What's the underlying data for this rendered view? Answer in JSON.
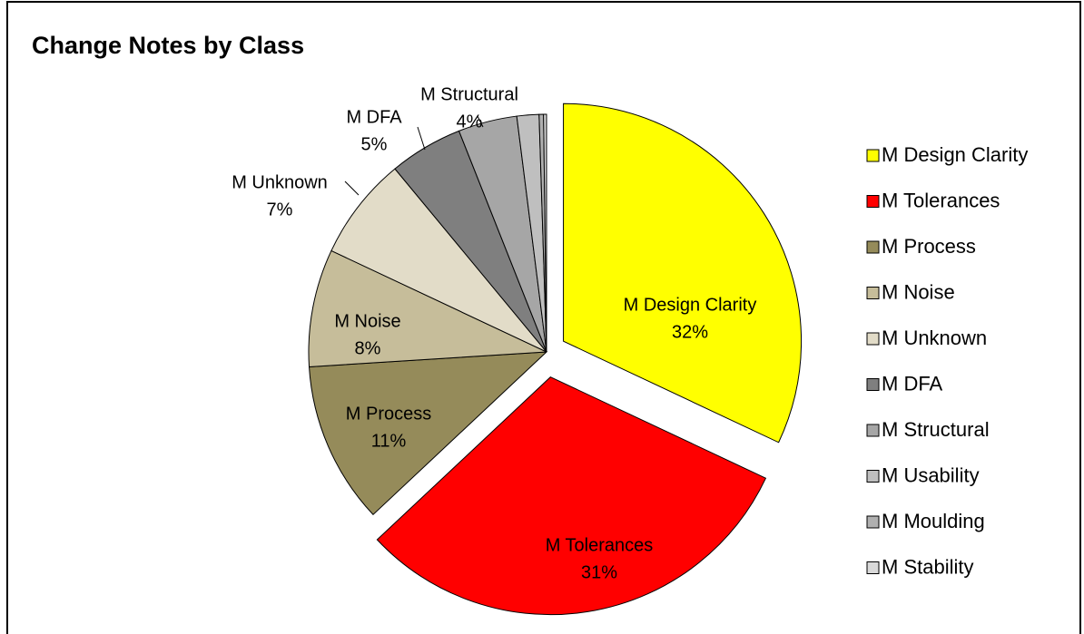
{
  "chart_data": {
    "type": "pie",
    "title": "Change Notes by Class",
    "categories": [
      "M Design Clarity",
      "M Tolerances",
      "M Process",
      "M Noise",
      "M Unknown",
      "M DFA",
      "M Structural",
      "M Usability",
      "M Moulding",
      "M Stability"
    ],
    "values": [
      32,
      31,
      11,
      8,
      7,
      5,
      4,
      1.5,
      0.3,
      0.2
    ],
    "value_labels": [
      "32%",
      "31%",
      "11%",
      "8%",
      "7%",
      "5%",
      "4%",
      null,
      null,
      null
    ],
    "colors": [
      "#ffff00",
      "#ff0000",
      "#958b5a",
      "#c6bd9a",
      "#e2dcc8",
      "#7f7f7f",
      "#a6a6a6",
      "#bfbfbf",
      "#b0b0b0",
      "#d9d9d9"
    ],
    "legend": "right"
  }
}
